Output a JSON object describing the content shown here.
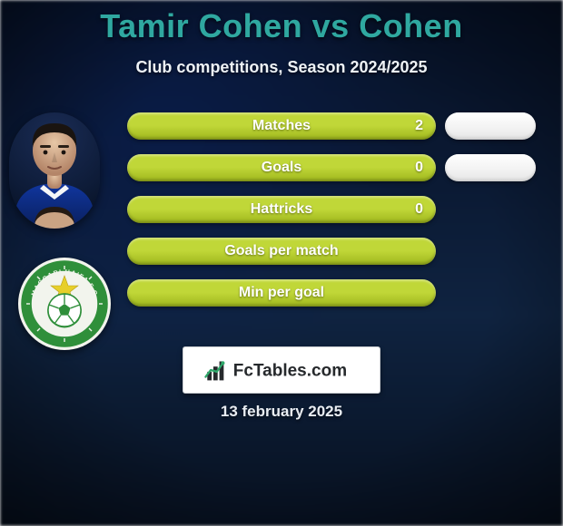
{
  "title": "Tamir Cohen vs Cohen",
  "title_color": "#2fa8a0",
  "subtitle": "Club competitions, Season 2024/2025",
  "date": "13 february 2025",
  "colors": {
    "left_pill": "#c0d738",
    "left_pill_dark": "#9fb71d",
    "right_pill_bg": "#ffffff",
    "text_light": "#eef2f6",
    "badge_primary": "#2f8f3a",
    "badge_accent": "#e7cf2a"
  },
  "player_photo_alt": "player-headshot",
  "club_badge_alt": "maccabi-haifa-crest",
  "stats": [
    {
      "label": "Matches",
      "left_value": "2",
      "right_value": "",
      "show_right_pill": true
    },
    {
      "label": "Goals",
      "left_value": "0",
      "right_value": "",
      "show_right_pill": true
    },
    {
      "label": "Hattricks",
      "left_value": "0",
      "right_value": "",
      "show_right_pill": false
    },
    {
      "label": "Goals per match",
      "left_value": "",
      "right_value": "",
      "show_right_pill": false
    },
    {
      "label": "Min per goal",
      "left_value": "",
      "right_value": "",
      "show_right_pill": false
    }
  ],
  "footer_brand": "FcTables.com"
}
